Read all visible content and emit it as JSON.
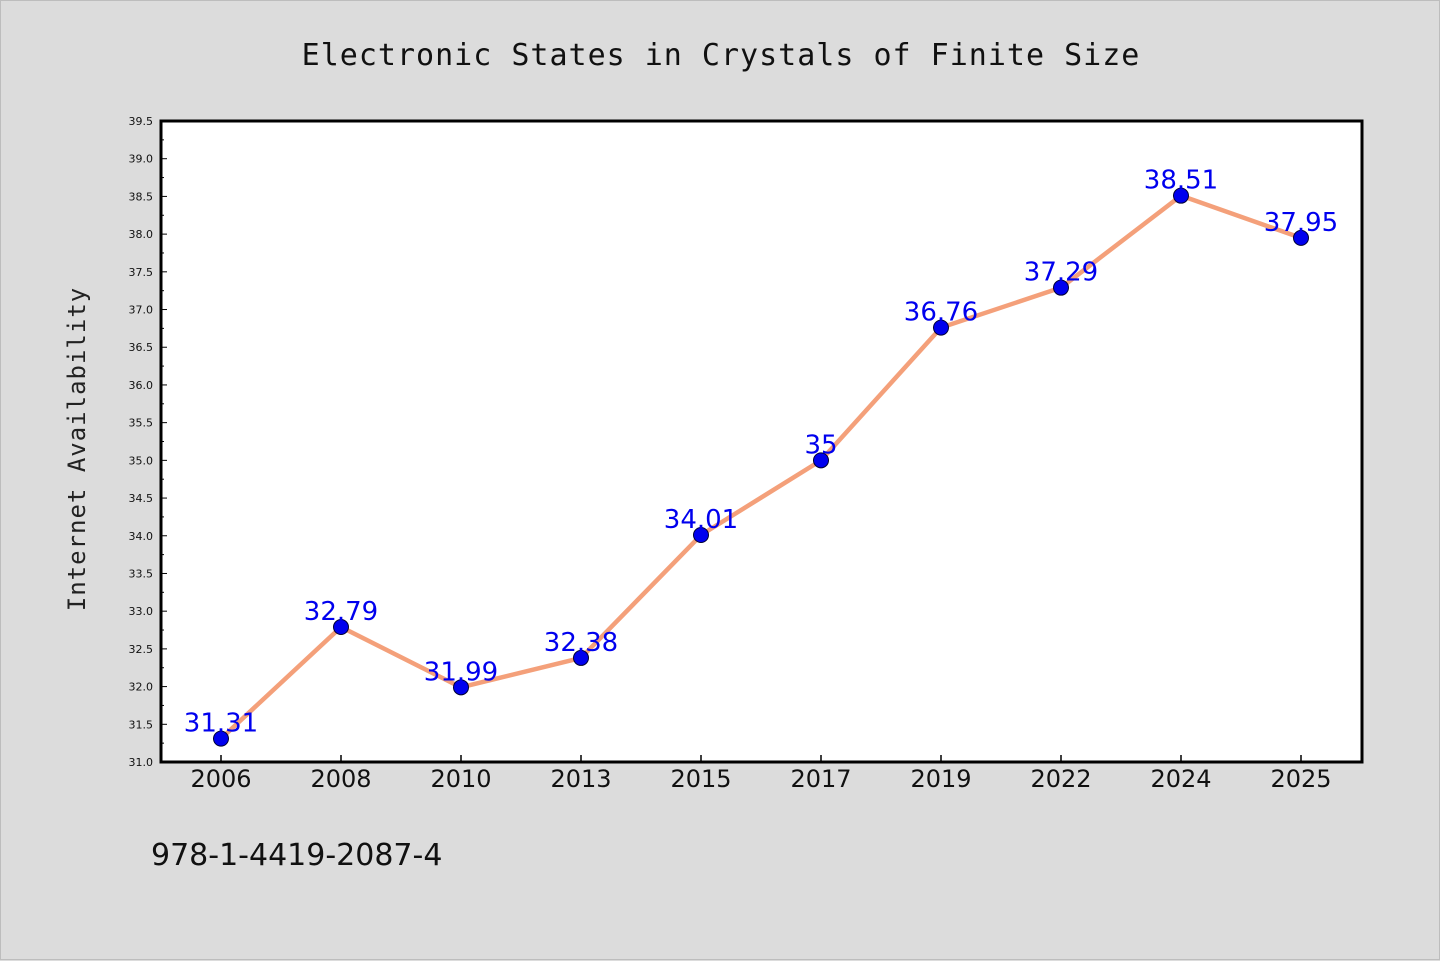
{
  "chart_data": {
    "type": "line",
    "title": "Electronic States in Crystals of Finite Size",
    "xlabel": "",
    "ylabel": "Internet Availability",
    "categories": [
      "2006",
      "2008",
      "2010",
      "2013",
      "2015",
      "2017",
      "2019",
      "2022",
      "2024",
      "2025"
    ],
    "series": [
      {
        "values": [
          31.31,
          32.79,
          31.99,
          32.38,
          34.01,
          35,
          36.76,
          37.29,
          38.51,
          37.95
        ],
        "labels": [
          "31.31",
          "32.79",
          "31.99",
          "32.38",
          "34.01",
          "35",
          "36.76",
          "37.29",
          "38.51",
          "37.95"
        ],
        "line_color": "#f4a07a",
        "marker_color": "#0000ee",
        "label_color": "#0000ee"
      }
    ],
    "ylim": [
      31.0,
      39.5
    ],
    "yticks": [
      "31.0",
      "31.5",
      "32.0",
      "32.5",
      "33.0",
      "33.5",
      "34.0",
      "34.5",
      "35.0",
      "35.5",
      "36.0",
      "36.5",
      "37.0",
      "37.5",
      "38.0",
      "38.5",
      "39.0",
      "39.5"
    ],
    "grid": false,
    "legend": "none"
  },
  "footer": {
    "isbn": "978-1-4419-2087-4"
  },
  "colors": {
    "background": "#dcdcdc",
    "plot_background": "#ffffff"
  }
}
